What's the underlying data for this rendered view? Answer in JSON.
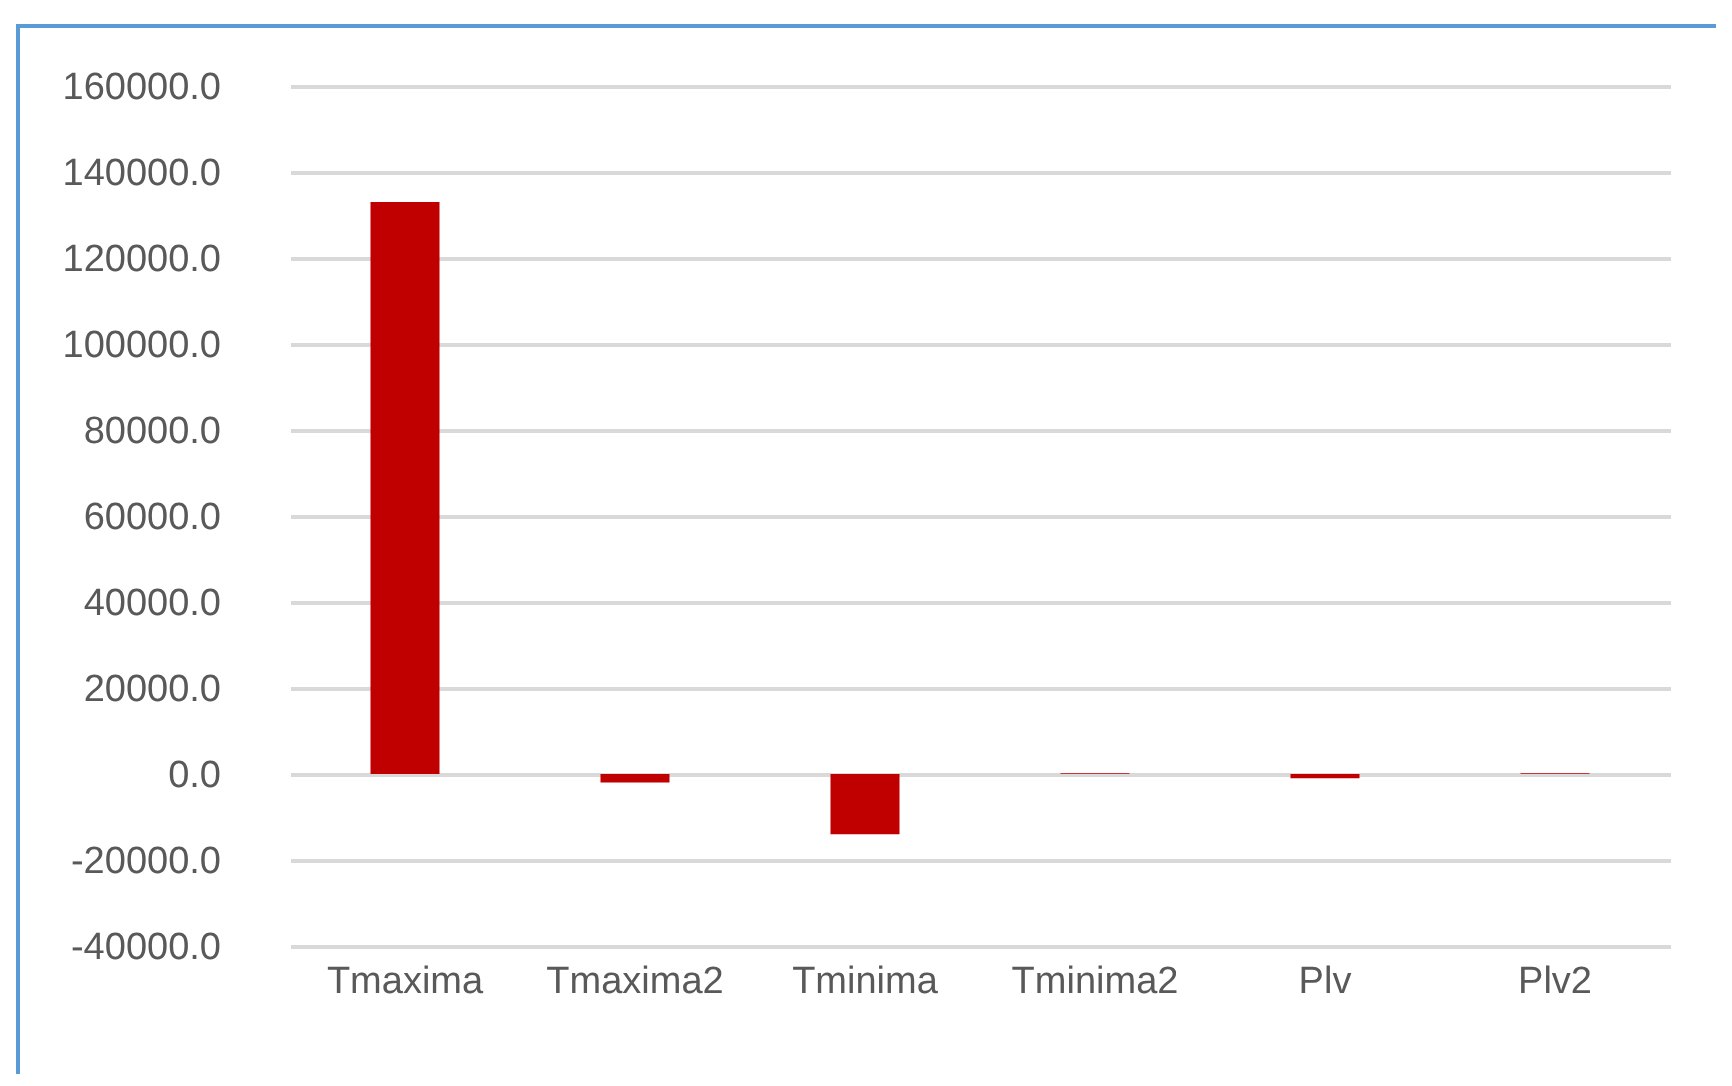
{
  "chart_data": {
    "type": "bar",
    "categories": [
      "Tmaxima",
      "Tmaxima2",
      "Tminima",
      "Tminima2",
      "Plv",
      "Plv2"
    ],
    "values": [
      133000,
      -2000,
      -14000,
      200,
      -1000,
      200
    ],
    "color": "#c00000",
    "ylim": [
      -40000,
      160000
    ],
    "yticks": [
      {
        "value": -40000,
        "label": "-40000.0"
      },
      {
        "value": -20000,
        "label": "-20000.0"
      },
      {
        "value": 0,
        "label": "0.0"
      },
      {
        "value": 20000,
        "label": "20000.0"
      },
      {
        "value": 40000,
        "label": "40000.0"
      },
      {
        "value": 60000,
        "label": "60000.0"
      },
      {
        "value": 80000,
        "label": "80000.0"
      },
      {
        "value": 100000,
        "label": "100000.0"
      },
      {
        "value": 120000,
        "label": "120000.0"
      },
      {
        "value": 140000,
        "label": "140000.0"
      },
      {
        "value": 160000,
        "label": "160000.0"
      }
    ],
    "grid": true
  }
}
